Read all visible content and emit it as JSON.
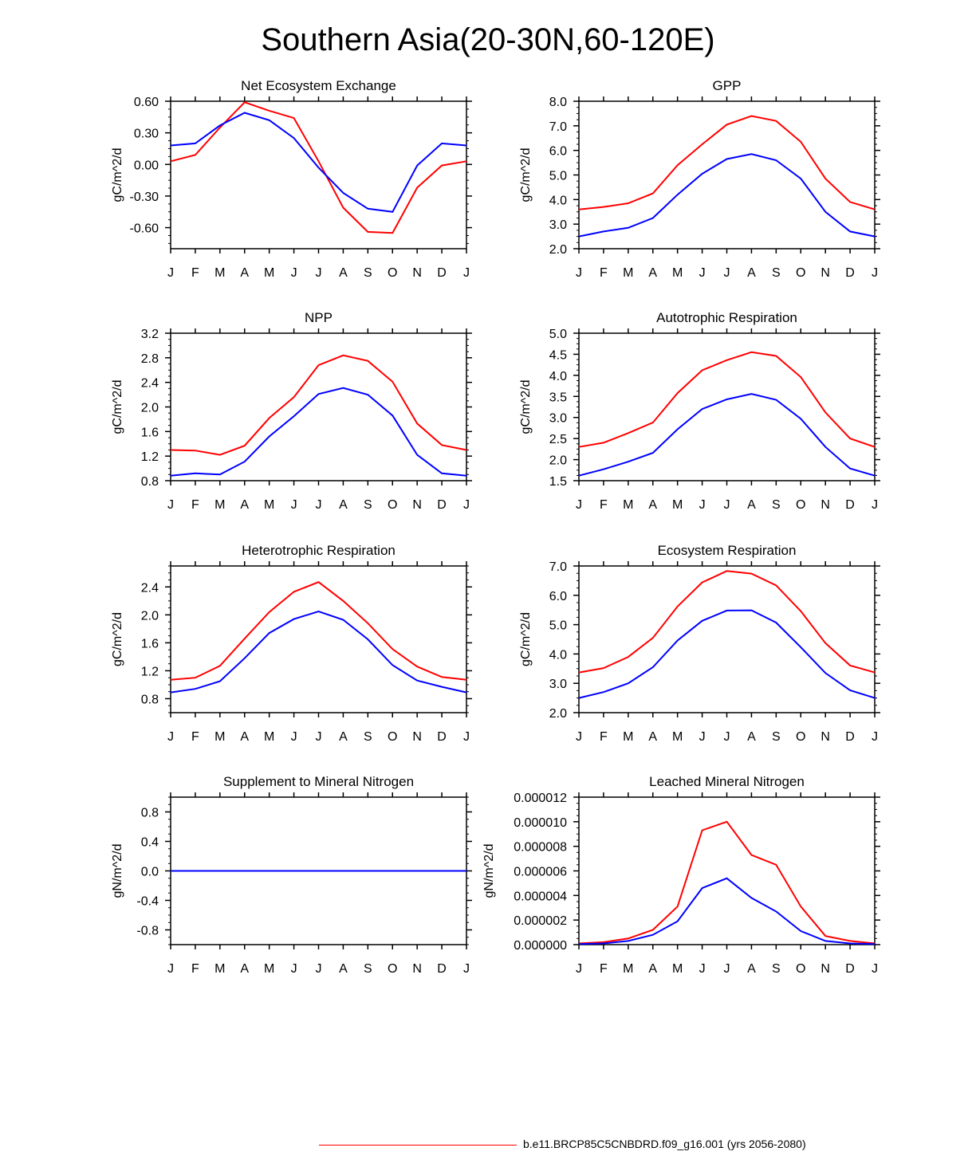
{
  "page_title": "Southern Asia(20-30N,60-120E)",
  "legend": {
    "label": "b.e11.BRCP85C5CNBDRD.f09_g16.001 (yrs 2056-2080)",
    "color": "#ff0000"
  },
  "series_colors": {
    "case": "#ff0000",
    "control": "#0000ff"
  },
  "chart_data": [
    {
      "type": "line",
      "title": "Net Ecosystem Exchange",
      "ylabel": "gC/m^2/d",
      "categories": [
        "J",
        "F",
        "M",
        "A",
        "M",
        "J",
        "J",
        "A",
        "S",
        "O",
        "N",
        "D",
        "J"
      ],
      "ylim": [
        -0.8,
        0.6
      ],
      "yticks": [
        -0.6,
        -0.3,
        0.0,
        0.3,
        0.6
      ],
      "ytick_labels": [
        "-0.60",
        "-0.30",
        "0.00",
        "0.30",
        "0.60"
      ],
      "series": [
        {
          "name": "red",
          "values": [
            0.03,
            0.09,
            0.35,
            0.59,
            0.51,
            0.44,
            0.03,
            -0.41,
            -0.64,
            -0.65,
            -0.22,
            -0.01,
            0.03
          ]
        },
        {
          "name": "blue",
          "values": [
            0.18,
            0.2,
            0.37,
            0.49,
            0.42,
            0.25,
            -0.03,
            -0.27,
            -0.42,
            -0.45,
            -0.01,
            0.2,
            0.18
          ]
        }
      ]
    },
    {
      "type": "line",
      "title": "GPP",
      "ylabel": "gC/m^2/d",
      "categories": [
        "J",
        "F",
        "M",
        "A",
        "M",
        "J",
        "J",
        "A",
        "S",
        "O",
        "N",
        "D",
        "J"
      ],
      "ylim": [
        2.0,
        8.0
      ],
      "yticks": [
        2,
        3,
        4,
        5,
        6,
        7,
        8
      ],
      "ytick_labels": [
        "2.0",
        "3.0",
        "4.0",
        "5.0",
        "6.0",
        "7.0",
        "8.0"
      ],
      "series": [
        {
          "name": "red",
          "values": [
            3.6,
            3.7,
            3.85,
            4.25,
            5.4,
            6.25,
            7.05,
            7.4,
            7.2,
            6.35,
            4.85,
            3.9,
            3.6
          ]
        },
        {
          "name": "blue",
          "values": [
            2.5,
            2.7,
            2.85,
            3.25,
            4.2,
            5.05,
            5.65,
            5.85,
            5.6,
            4.85,
            3.5,
            2.7,
            2.5
          ]
        }
      ]
    },
    {
      "type": "line",
      "title": "NPP",
      "ylabel": "gC/m^2/d",
      "categories": [
        "J",
        "F",
        "M",
        "A",
        "M",
        "J",
        "J",
        "A",
        "S",
        "O",
        "N",
        "D",
        "J"
      ],
      "ylim": [
        0.8,
        3.2
      ],
      "yticks": [
        0.8,
        1.2,
        1.6,
        2.0,
        2.4,
        2.8,
        3.2
      ],
      "ytick_labels": [
        "0.8",
        "1.2",
        "1.6",
        "2.0",
        "2.4",
        "2.8",
        "3.2"
      ],
      "series": [
        {
          "name": "red",
          "values": [
            1.3,
            1.29,
            1.22,
            1.37,
            1.82,
            2.16,
            2.68,
            2.84,
            2.75,
            2.41,
            1.73,
            1.38,
            1.3
          ]
        },
        {
          "name": "blue",
          "values": [
            0.88,
            0.92,
            0.9,
            1.11,
            1.52,
            1.85,
            2.21,
            2.31,
            2.2,
            1.86,
            1.22,
            0.92,
            0.88
          ]
        }
      ]
    },
    {
      "type": "line",
      "title": "Autotrophic Respiration",
      "ylabel": "gC/m^2/d",
      "categories": [
        "J",
        "F",
        "M",
        "A",
        "M",
        "J",
        "J",
        "A",
        "S",
        "O",
        "N",
        "D",
        "J"
      ],
      "ylim": [
        1.5,
        5.0
      ],
      "yticks": [
        1.5,
        2.0,
        2.5,
        3.0,
        3.5,
        4.0,
        4.5,
        5.0
      ],
      "ytick_labels": [
        "1.5",
        "2.0",
        "2.5",
        "3.0",
        "3.5",
        "4.0",
        "4.5",
        "5.0"
      ],
      "series": [
        {
          "name": "red",
          "values": [
            2.3,
            2.4,
            2.63,
            2.88,
            3.58,
            4.12,
            4.36,
            4.55,
            4.46,
            3.96,
            3.12,
            2.5,
            2.3
          ]
        },
        {
          "name": "blue",
          "values": [
            1.62,
            1.77,
            1.95,
            2.16,
            2.72,
            3.2,
            3.43,
            3.56,
            3.42,
            2.97,
            2.3,
            1.79,
            1.62
          ]
        }
      ]
    },
    {
      "type": "line",
      "title": "Heterotrophic Respiration",
      "ylabel": "gC/m^2/d",
      "categories": [
        "J",
        "F",
        "M",
        "A",
        "M",
        "J",
        "J",
        "A",
        "S",
        "O",
        "N",
        "D",
        "J"
      ],
      "ylim": [
        0.6,
        2.7
      ],
      "yticks": [
        0.8,
        1.2,
        1.6,
        2.0,
        2.4
      ],
      "ytick_labels": [
        "0.8",
        "1.2",
        "1.6",
        "2.0",
        "2.4"
      ],
      "series": [
        {
          "name": "red",
          "values": [
            1.07,
            1.1,
            1.27,
            1.66,
            2.04,
            2.33,
            2.47,
            2.2,
            1.88,
            1.51,
            1.26,
            1.11,
            1.07
          ]
        },
        {
          "name": "blue",
          "values": [
            0.89,
            0.94,
            1.05,
            1.38,
            1.74,
            1.94,
            2.05,
            1.93,
            1.65,
            1.28,
            1.06,
            0.97,
            0.89
          ]
        }
      ]
    },
    {
      "type": "line",
      "title": "Ecosystem Respiration",
      "ylabel": "gC/m^2/d",
      "categories": [
        "J",
        "F",
        "M",
        "A",
        "M",
        "J",
        "J",
        "A",
        "S",
        "O",
        "N",
        "D",
        "J"
      ],
      "ylim": [
        2.0,
        7.0
      ],
      "yticks": [
        2,
        3,
        4,
        5,
        6,
        7
      ],
      "ytick_labels": [
        "2.0",
        "3.0",
        "4.0",
        "5.0",
        "6.0",
        "7.0"
      ],
      "series": [
        {
          "name": "red",
          "values": [
            3.37,
            3.52,
            3.9,
            4.55,
            5.62,
            6.44,
            6.83,
            6.74,
            6.34,
            5.46,
            4.37,
            3.61,
            3.37
          ]
        },
        {
          "name": "blue",
          "values": [
            2.5,
            2.7,
            3.0,
            3.55,
            4.46,
            5.13,
            5.48,
            5.49,
            5.07,
            4.23,
            3.35,
            2.76,
            2.5
          ]
        }
      ]
    },
    {
      "type": "line",
      "title": "Supplement to Mineral Nitrogen",
      "ylabel": "gN/m^2/d",
      "categories": [
        "J",
        "F",
        "M",
        "A",
        "M",
        "J",
        "J",
        "A",
        "S",
        "O",
        "N",
        "D",
        "J"
      ],
      "ylim": [
        -1.0,
        1.0
      ],
      "yticks": [
        -0.8,
        -0.4,
        0.0,
        0.4,
        0.8
      ],
      "ytick_labels": [
        "-0.8",
        "-0.4",
        "0.0",
        "0.4",
        "0.8"
      ],
      "series": [
        {
          "name": "red",
          "values": [
            0,
            0,
            0,
            0,
            0,
            0,
            0,
            0,
            0,
            0,
            0,
            0,
            0
          ]
        },
        {
          "name": "blue",
          "values": [
            0,
            0,
            0,
            0,
            0,
            0,
            0,
            0,
            0,
            0,
            0,
            0,
            0
          ]
        }
      ]
    },
    {
      "type": "line",
      "title": "Leached Mineral Nitrogen",
      "ylabel": "gN/m^2/d",
      "categories": [
        "J",
        "F",
        "M",
        "A",
        "M",
        "J",
        "J",
        "A",
        "S",
        "O",
        "N",
        "D",
        "J"
      ],
      "ylim": [
        0.0,
        1.2e-05
      ],
      "yticks": [
        0,
        2e-06,
        4e-06,
        6e-06,
        8e-06,
        1e-05,
        1.2e-05
      ],
      "ytick_labels": [
        "0.000000",
        "0.000002",
        "0.000004",
        "0.000006",
        "0.000008",
        "0.000010",
        "0.000012"
      ],
      "series": [
        {
          "name": "red",
          "values": [
            1e-07,
            2e-07,
            5e-07,
            1.2e-06,
            3.1e-06,
            9.3e-06,
            1e-05,
            7.3e-06,
            6.5e-06,
            3.1e-06,
            7e-07,
            3e-07,
            1e-07
          ]
        },
        {
          "name": "blue",
          "values": [
            5e-08,
            1e-07,
            3e-07,
            8e-07,
            1.9e-06,
            4.6e-06,
            5.4e-06,
            3.8e-06,
            2.7e-06,
            1.1e-06,
            3e-07,
            1e-07,
            5e-08
          ]
        }
      ]
    }
  ]
}
